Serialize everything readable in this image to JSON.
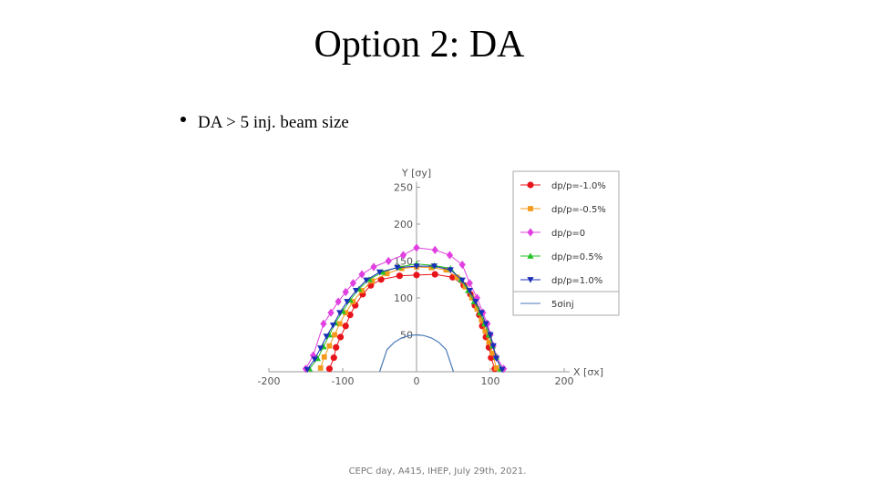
{
  "title": "Option 2: DA",
  "bullets": [
    "DA > 5 inj. beam size"
  ],
  "footer": "CEPC day, A415, IHEP, July 29th, 2021.",
  "chart_data": {
    "type": "line",
    "x_label": "X [σx]",
    "y_label": "Y [σy]",
    "xlim": [
      -200,
      200
    ],
    "ylim": [
      0,
      250
    ],
    "xticks": [
      -200,
      -100,
      0,
      100,
      200
    ],
    "yticks": [
      50,
      100,
      150,
      200,
      250
    ],
    "legend": "upper-right",
    "series": [
      {
        "name": "dp/p=-1.0%",
        "color": "#e8141b",
        "marker": "circle",
        "x": [
          -118,
          -112,
          -109,
          -103,
          -96,
          -90,
          -83,
          -73,
          -62,
          -48,
          -23,
          0,
          25,
          49,
          64,
          73,
          79,
          85,
          89,
          94,
          98,
          101,
          106
        ],
        "values": [
          4,
          19,
          33,
          47,
          62,
          77,
          90,
          105,
          117,
          125,
          130,
          131,
          132,
          128,
          117,
          105,
          90,
          77,
          62,
          47,
          33,
          19,
          4
        ]
      },
      {
        "name": "dp/p=-0.5%",
        "color": "#f39a1c",
        "marker": "square",
        "x": [
          -130,
          -125,
          -118,
          -111,
          -104,
          -96,
          -86,
          -74,
          -60,
          -40,
          -20,
          0,
          20,
          40,
          55,
          66,
          75,
          82,
          88,
          93,
          98,
          103,
          108
        ],
        "values": [
          5,
          20,
          35,
          50,
          65,
          80,
          95,
          110,
          123,
          133,
          140,
          142,
          141,
          138,
          128,
          115,
          100,
          85,
          70,
          55,
          40,
          25,
          5
        ]
      },
      {
        "name": "dp/p=0",
        "color": "#e040e0",
        "marker": "diamond",
        "x": [
          -150,
          -140,
          -126,
          -116,
          -106,
          -96,
          -86,
          -74,
          -58,
          -38,
          -18,
          0,
          25,
          45,
          62,
          72,
          82,
          90,
          96,
          100,
          104,
          108,
          118
        ],
        "values": [
          4,
          22,
          65,
          80,
          95,
          108,
          120,
          132,
          142,
          150,
          158,
          168,
          165,
          158,
          145,
          120,
          100,
          80,
          65,
          50,
          35,
          20,
          4
        ]
      },
      {
        "name": "dp/p=0.5%",
        "color": "#23c323",
        "marker": "triangle-up",
        "x": [
          -145,
          -134,
          -126,
          -118,
          -110,
          -100,
          -90,
          -78,
          -64,
          -46,
          -24,
          0,
          24,
          46,
          60,
          70,
          78,
          86,
          92,
          98,
          103,
          108,
          114
        ],
        "values": [
          4,
          18,
          34,
          50,
          66,
          82,
          97,
          112,
          125,
          135,
          142,
          146,
          144,
          140,
          125,
          110,
          95,
          80,
          65,
          50,
          35,
          20,
          4
        ]
      },
      {
        "name": "dp/p=1.0%",
        "color": "#1a2fb8",
        "marker": "triangle-down",
        "x": [
          -148,
          -138,
          -130,
          -122,
          -113,
          -104,
          -94,
          -82,
          -68,
          -50,
          -26,
          0,
          24,
          46,
          62,
          72,
          80,
          88,
          94,
          100,
          104,
          108,
          116
        ],
        "values": [
          3,
          17,
          32,
          48,
          63,
          80,
          95,
          110,
          124,
          135,
          141,
          143,
          143,
          138,
          124,
          110,
          95,
          80,
          65,
          50,
          35,
          18,
          3
        ]
      },
      {
        "name": "5σinj",
        "color": "#4a7ab8",
        "marker": "none",
        "x": [
          -50,
          -40,
          -30,
          -20,
          -10,
          0,
          10,
          20,
          30,
          40,
          50
        ],
        "values": [
          0,
          30,
          40,
          45.8,
          49,
          50,
          49,
          45.8,
          40,
          30,
          0
        ]
      }
    ]
  }
}
